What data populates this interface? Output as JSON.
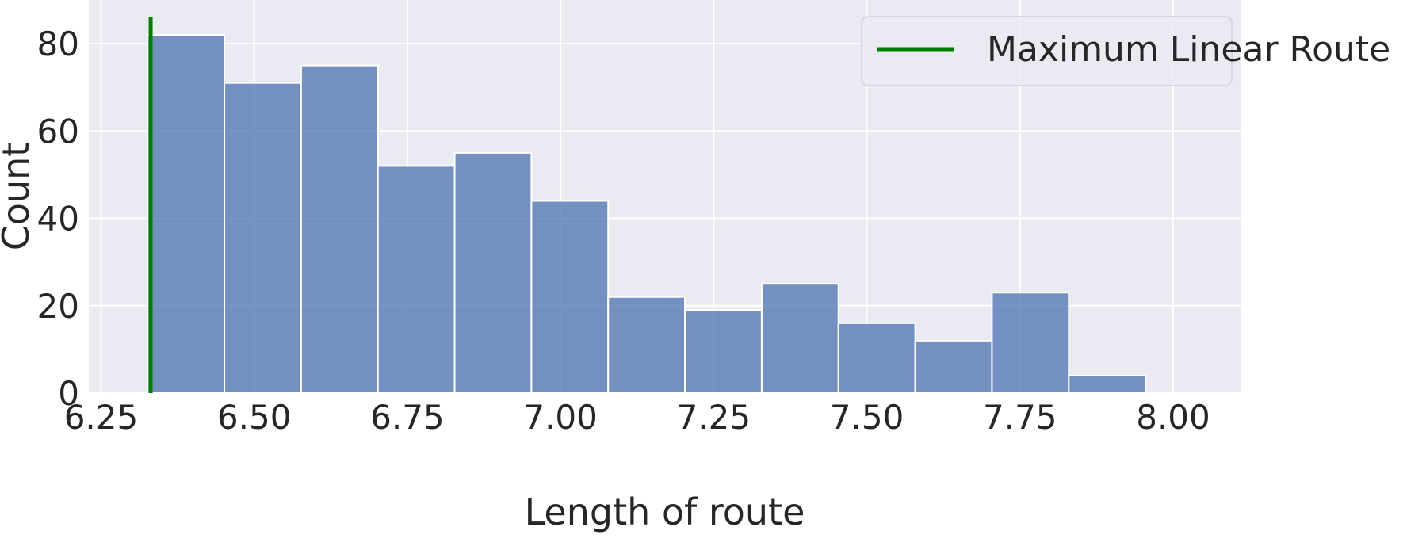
{
  "chart_data": {
    "type": "bar",
    "title": "",
    "xlabel": "Length of route",
    "ylabel": "Count",
    "xlim": [
      6.23,
      8.11
    ],
    "ylim": [
      0,
      90
    ],
    "xticks": [
      6.25,
      6.5,
      6.75,
      7.0,
      7.25,
      7.5,
      7.75,
      8.0
    ],
    "xtick_labels": [
      "6.25",
      "6.50",
      "6.75",
      "7.00",
      "7.25",
      "7.50",
      "7.75",
      "8.00"
    ],
    "yticks": [
      0,
      20,
      40,
      60,
      80
    ],
    "ytick_labels": [
      "0",
      "20",
      "40",
      "60",
      "80"
    ],
    "bin_edges": [
      6.326,
      6.4513,
      6.5766,
      6.7019,
      6.8272,
      6.9525,
      7.0778,
      7.2031,
      7.3284,
      7.4537,
      7.579,
      7.7043,
      7.8296,
      7.9549
    ],
    "values": [
      82,
      71,
      75,
      52,
      55,
      44,
      22,
      19,
      25,
      16,
      12,
      23,
      4
    ],
    "vertical_line": {
      "x": 6.331,
      "y_top": 90,
      "label": "Maximum Linear Route",
      "color": "#008000"
    },
    "legend": {
      "entries": [
        "Maximum Linear Route"
      ],
      "placement": "top-right"
    },
    "grid": true,
    "colors": {
      "bars": "#4c72b0",
      "background": "#eaeaf2",
      "grid": "#ffffff",
      "line": "#008000"
    }
  }
}
